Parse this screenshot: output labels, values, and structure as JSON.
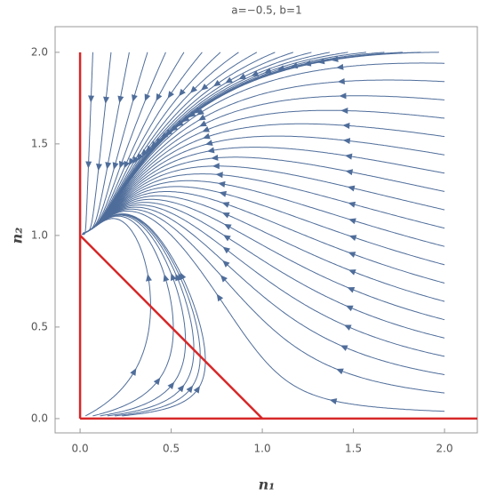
{
  "chart_data": {
    "type": "streamplot",
    "title": "a=−0.5, b=1",
    "xlabel": "n₁",
    "ylabel": "n₂",
    "xlim": [
      -0.137,
      2.18
    ],
    "ylim": [
      -0.078,
      2.14
    ],
    "xticks": [
      {
        "value": 0,
        "label": "0.0"
      },
      {
        "value": 0.5,
        "label": "0.5"
      },
      {
        "value": 1,
        "label": "1.0"
      },
      {
        "value": 1.5,
        "label": "1.5"
      },
      {
        "value": 2,
        "label": "2.0"
      }
    ],
    "yticks": [
      {
        "value": 0,
        "label": "0.0"
      },
      {
        "value": 0.5,
        "label": "0.5"
      },
      {
        "value": 1,
        "label": "1.0"
      },
      {
        "value": 1.5,
        "label": "1.5"
      },
      {
        "value": 2,
        "label": "2.0"
      }
    ],
    "stream_color": "#4f6d9a",
    "nullclines": {
      "color": "#d62728",
      "segments": [
        {
          "x": [
            0,
            0
          ],
          "y": [
            0,
            2
          ]
        },
        {
          "x": [
            0,
            1
          ],
          "y": [
            1,
            0
          ]
        },
        {
          "x": [
            0,
            2.18
          ],
          "y": [
            0,
            0
          ]
        }
      ]
    }
  }
}
